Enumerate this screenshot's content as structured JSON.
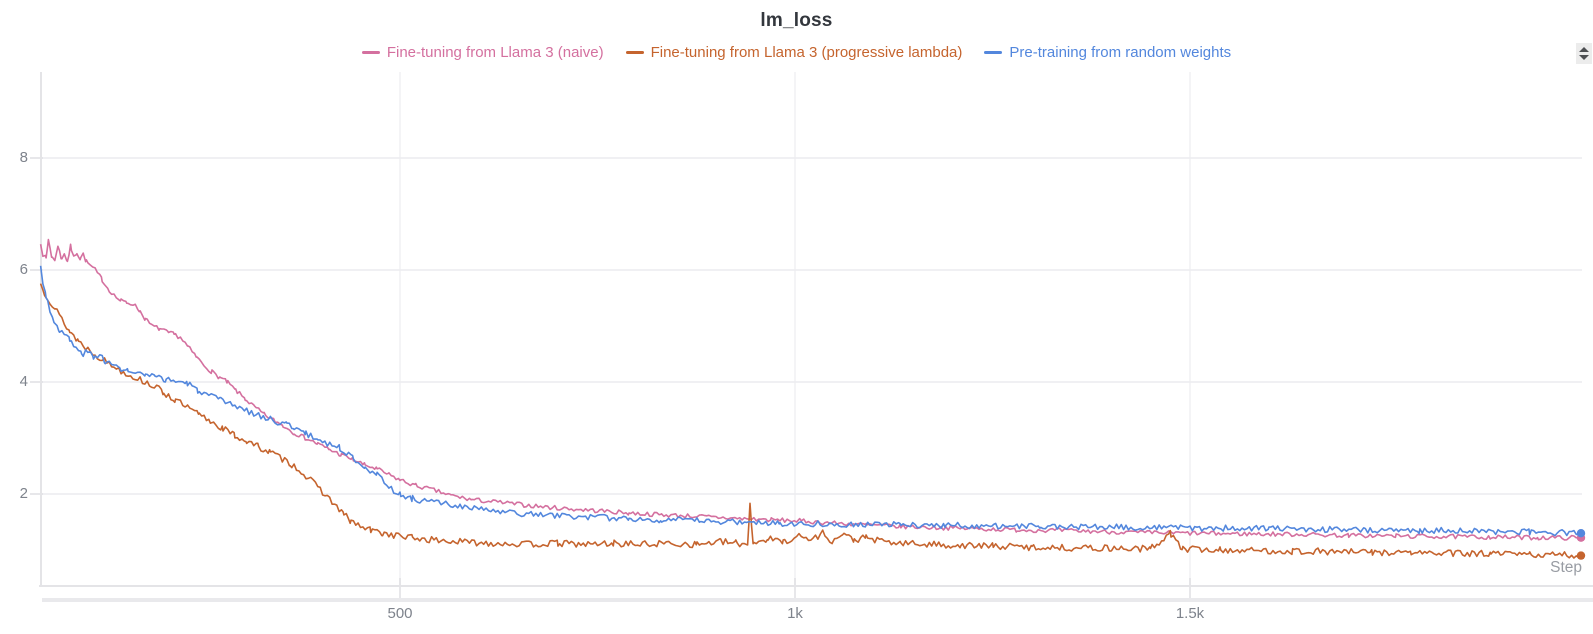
{
  "title": "lm_loss",
  "legend": [
    {
      "label": "Fine-tuning from Llama 3 (naive)",
      "color": "#d4709f"
    },
    {
      "label": "Fine-tuning from Llama 3 (progressive lambda)",
      "color": "#c5642e"
    },
    {
      "label": "Pre-training from random weights",
      "color": "#5387dd"
    }
  ],
  "axes": {
    "x": {
      "label": "Step",
      "ticks": [
        {
          "value": 500,
          "label": "500"
        },
        {
          "value": 1000,
          "label": "1k"
        },
        {
          "value": 1500,
          "label": "1.5k"
        }
      ],
      "range": [
        45,
        2010
      ]
    },
    "y": {
      "ticks": [
        {
          "value": 2,
          "label": "2"
        },
        {
          "value": 4,
          "label": "4"
        },
        {
          "value": 6,
          "label": "6"
        },
        {
          "value": 8,
          "label": "8"
        }
      ],
      "range": [
        0.34,
        9.54
      ],
      "grid": true
    }
  },
  "controls": {
    "panel_stepper": "up-down-stepper"
  },
  "chart_data": {
    "type": "line",
    "title": "lm_loss",
    "xlabel": "Step",
    "ylabel": "",
    "x_range": [
      45,
      2010
    ],
    "y_range": [
      0.34,
      9.54
    ],
    "grid": true,
    "legend_position": "top",
    "end_markers": true,
    "series": [
      {
        "name": "Fine-tuning from Llama 3 (naive)",
        "color": "#d4709f",
        "noise": 0.04,
        "seed": 7,
        "points": [
          [
            45,
            6.5
          ],
          [
            48,
            6.28
          ],
          [
            52,
            6.2
          ],
          [
            55,
            6.55
          ],
          [
            59,
            6.25
          ],
          [
            63,
            6.15
          ],
          [
            67,
            6.45
          ],
          [
            71,
            6.2
          ],
          [
            75,
            6.3
          ],
          [
            79,
            6.15
          ],
          [
            83,
            6.42
          ],
          [
            87,
            6.22
          ],
          [
            91,
            6.32
          ],
          [
            95,
            6.2
          ],
          [
            99,
            6.28
          ],
          [
            103,
            6.15
          ],
          [
            108,
            6.08
          ],
          [
            114,
            6.0
          ],
          [
            122,
            5.85
          ],
          [
            130,
            5.68
          ],
          [
            138,
            5.55
          ],
          [
            146,
            5.45
          ],
          [
            154,
            5.42
          ],
          [
            162,
            5.4
          ],
          [
            170,
            5.28
          ],
          [
            178,
            5.12
          ],
          [
            186,
            5.0
          ],
          [
            196,
            4.95
          ],
          [
            206,
            4.88
          ],
          [
            214,
            4.85
          ],
          [
            222,
            4.8
          ],
          [
            232,
            4.62
          ],
          [
            242,
            4.45
          ],
          [
            252,
            4.3
          ],
          [
            262,
            4.18
          ],
          [
            272,
            4.08
          ],
          [
            281,
            4.0
          ],
          [
            292,
            3.85
          ],
          [
            304,
            3.7
          ],
          [
            316,
            3.55
          ],
          [
            328,
            3.42
          ],
          [
            340,
            3.32
          ],
          [
            352,
            3.22
          ],
          [
            365,
            3.1
          ],
          [
            380,
            3.0
          ],
          [
            395,
            2.9
          ],
          [
            410,
            2.8
          ],
          [
            425,
            2.7
          ],
          [
            440,
            2.62
          ],
          [
            455,
            2.52
          ],
          [
            470,
            2.45
          ],
          [
            485,
            2.35
          ],
          [
            500,
            2.25
          ],
          [
            520,
            2.15
          ],
          [
            540,
            2.08
          ],
          [
            563,
            1.98
          ],
          [
            590,
            1.9
          ],
          [
            627,
            1.85
          ],
          [
            660,
            1.8
          ],
          [
            690,
            1.76
          ],
          [
            720,
            1.73
          ],
          [
            753,
            1.7
          ],
          [
            790,
            1.66
          ],
          [
            830,
            1.63
          ],
          [
            880,
            1.6
          ],
          [
            930,
            1.56
          ],
          [
            970,
            1.54
          ],
          [
            1006,
            1.52
          ],
          [
            1050,
            1.48
          ],
          [
            1090,
            1.45
          ],
          [
            1133,
            1.42
          ],
          [
            1180,
            1.4
          ],
          [
            1230,
            1.38
          ],
          [
            1280,
            1.36
          ],
          [
            1330,
            1.35
          ],
          [
            1386,
            1.33
          ],
          [
            1440,
            1.31
          ],
          [
            1500,
            1.3
          ],
          [
            1560,
            1.29
          ],
          [
            1639,
            1.28
          ],
          [
            1700,
            1.26
          ],
          [
            1760,
            1.25
          ],
          [
            1820,
            1.24
          ],
          [
            1880,
            1.23
          ],
          [
            1940,
            1.22
          ],
          [
            1995,
            1.22
          ]
        ]
      },
      {
        "name": "Fine-tuning from Llama 3 (progressive lambda)",
        "color": "#c5642e",
        "noise": 0.06,
        "seed": 13,
        "points": [
          [
            45,
            5.75
          ],
          [
            50,
            5.6
          ],
          [
            57,
            5.45
          ],
          [
            64,
            5.3
          ],
          [
            72,
            5.12
          ],
          [
            82,
            4.9
          ],
          [
            92,
            4.75
          ],
          [
            102,
            4.62
          ],
          [
            114,
            4.5
          ],
          [
            126,
            4.38
          ],
          [
            138,
            4.28
          ],
          [
            150,
            4.18
          ],
          [
            162,
            4.1
          ],
          [
            174,
            4.02
          ],
          [
            186,
            3.95
          ],
          [
            200,
            3.82
          ],
          [
            215,
            3.68
          ],
          [
            230,
            3.55
          ],
          [
            245,
            3.42
          ],
          [
            260,
            3.3
          ],
          [
            275,
            3.18
          ],
          [
            290,
            3.05
          ],
          [
            305,
            2.95
          ],
          [
            320,
            2.85
          ],
          [
            335,
            2.75
          ],
          [
            348,
            2.65
          ],
          [
            361,
            2.55
          ],
          [
            375,
            2.4
          ],
          [
            390,
            2.2
          ],
          [
            405,
            2.0
          ],
          [
            418,
            1.8
          ],
          [
            428,
            1.65
          ],
          [
            437,
            1.52
          ],
          [
            450,
            1.42
          ],
          [
            463,
            1.35
          ],
          [
            478,
            1.3
          ],
          [
            495,
            1.26
          ],
          [
            515,
            1.22
          ],
          [
            540,
            1.18
          ],
          [
            570,
            1.15
          ],
          [
            600,
            1.13
          ],
          [
            630,
            1.12
          ],
          [
            665,
            1.1
          ],
          [
            700,
            1.12
          ],
          [
            735,
            1.1
          ],
          [
            770,
            1.12
          ],
          [
            805,
            1.1
          ],
          [
            840,
            1.12
          ],
          [
            875,
            1.1
          ],
          [
            905,
            1.15
          ],
          [
            925,
            1.12
          ],
          [
            940,
            1.1
          ],
          [
            943,
            1.85
          ],
          [
            947,
            1.12
          ],
          [
            965,
            1.2
          ],
          [
            985,
            1.15
          ],
          [
            1005,
            1.25
          ],
          [
            1020,
            1.18
          ],
          [
            1035,
            1.3
          ],
          [
            1048,
            1.15
          ],
          [
            1060,
            1.28
          ],
          [
            1075,
            1.18
          ],
          [
            1090,
            1.22
          ],
          [
            1110,
            1.15
          ],
          [
            1133,
            1.12
          ],
          [
            1170,
            1.1
          ],
          [
            1210,
            1.08
          ],
          [
            1250,
            1.07
          ],
          [
            1300,
            1.05
          ],
          [
            1350,
            1.04
          ],
          [
            1400,
            1.03
          ],
          [
            1450,
            1.02
          ],
          [
            1475,
            1.3
          ],
          [
            1490,
            1.02
          ],
          [
            1538,
            1.0
          ],
          [
            1580,
            0.99
          ],
          [
            1630,
            0.98
          ],
          [
            1680,
            0.97
          ],
          [
            1730,
            0.96
          ],
          [
            1780,
            0.95
          ],
          [
            1830,
            0.94
          ],
          [
            1880,
            0.93
          ],
          [
            1930,
            0.92
          ],
          [
            1995,
            0.9
          ]
        ]
      },
      {
        "name": "Pre-training from random weights",
        "color": "#5387dd",
        "noise": 0.055,
        "seed": 3,
        "points": [
          [
            45,
            6.05
          ],
          [
            48,
            5.8
          ],
          [
            52,
            5.55
          ],
          [
            57,
            5.25
          ],
          [
            62,
            5.1
          ],
          [
            68,
            4.95
          ],
          [
            75,
            4.85
          ],
          [
            82,
            4.75
          ],
          [
            90,
            4.6
          ],
          [
            97,
            4.5
          ],
          [
            105,
            4.55
          ],
          [
            112,
            4.42
          ],
          [
            120,
            4.5
          ],
          [
            127,
            4.38
          ],
          [
            135,
            4.3
          ],
          [
            145,
            4.25
          ],
          [
            155,
            4.2
          ],
          [
            165,
            4.15
          ],
          [
            178,
            4.12
          ],
          [
            190,
            4.08
          ],
          [
            203,
            4.05
          ],
          [
            216,
            4.02
          ],
          [
            230,
            3.98
          ],
          [
            244,
            3.85
          ],
          [
            258,
            3.75
          ],
          [
            272,
            3.68
          ],
          [
            285,
            3.6
          ],
          [
            297,
            3.55
          ],
          [
            312,
            3.45
          ],
          [
            327,
            3.38
          ],
          [
            342,
            3.3
          ],
          [
            356,
            3.25
          ],
          [
            365,
            3.2
          ],
          [
            380,
            3.08
          ],
          [
            395,
            2.98
          ],
          [
            410,
            2.9
          ],
          [
            424,
            2.82
          ],
          [
            440,
            2.65
          ],
          [
            455,
            2.5
          ],
          [
            470,
            2.35
          ],
          [
            485,
            2.15
          ],
          [
            500,
            1.98
          ],
          [
            515,
            1.92
          ],
          [
            530,
            1.88
          ],
          [
            550,
            1.84
          ],
          [
            575,
            1.78
          ],
          [
            600,
            1.73
          ],
          [
            627,
            1.68
          ],
          [
            660,
            1.64
          ],
          [
            690,
            1.62
          ],
          [
            720,
            1.6
          ],
          [
            753,
            1.58
          ],
          [
            790,
            1.56
          ],
          [
            830,
            1.54
          ],
          [
            880,
            1.52
          ],
          [
            930,
            1.5
          ],
          [
            980,
            1.48
          ],
          [
            1032,
            1.47
          ],
          [
            1080,
            1.46
          ],
          [
            1133,
            1.45
          ],
          [
            1190,
            1.44
          ],
          [
            1250,
            1.43
          ],
          [
            1310,
            1.42
          ],
          [
            1386,
            1.41
          ],
          [
            1450,
            1.4
          ],
          [
            1538,
            1.39
          ],
          [
            1600,
            1.38
          ],
          [
            1660,
            1.37
          ],
          [
            1720,
            1.36
          ],
          [
            1790,
            1.35
          ],
          [
            1860,
            1.34
          ],
          [
            1930,
            1.32
          ],
          [
            1995,
            1.3
          ]
        ]
      }
    ]
  }
}
